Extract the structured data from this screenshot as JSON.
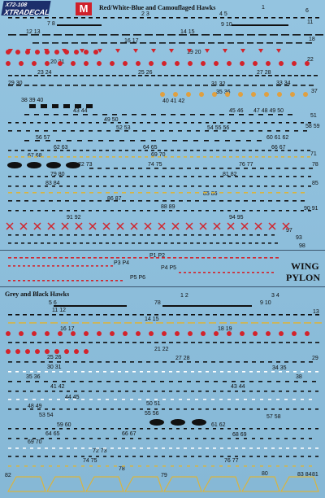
{
  "header": {
    "brand": "XTRADECAL",
    "code": "X72-108",
    "brand_mark": "M",
    "title_top": "Red/White-Blue and Camouflaged Hawks",
    "title_bottom": "Grey and Black Hawks",
    "wing_label": "WING",
    "pylon_label": "PYLON"
  },
  "labels": {
    "n1": "1",
    "n23": "2 3",
    "n45": "4 5",
    "n6": "6",
    "n7": "7 8",
    "n910": "9 10",
    "n11": "11",
    "n12": "12 13",
    "n1415": "14 15",
    "n1617": "16 17",
    "n18": "18",
    "n1920": "19 20",
    "n2021": "20 21",
    "n22": "22",
    "n2324": "23 24",
    "n2526": "25 26",
    "n2728": "27 28",
    "n2930": "29 30",
    "n3132": "31 32",
    "n3334": "33 34",
    "n3536": "35 36",
    "n37": "37",
    "n383940": "38 39 40",
    "n404142": "40 41 42",
    "n4344": "43 44",
    "n4546": "45 46",
    "n474849": "47 48 49 50",
    "n4950": "49 50",
    "n51": "51",
    "n5253": "52 53",
    "n5455": "54 55 56",
    "n5657": "56 57",
    "n58": "58 59",
    "n60": "60 61 62",
    "n6263": "62 63",
    "n6465": "64 65",
    "n6667": "66 67",
    "n6768": "67 68",
    "n6970": "69 70",
    "n71": "71",
    "n7273": "72 73",
    "n7475": "74 75",
    "n7677": "76 77",
    "n78": "78",
    "n7980": "79 80",
    "n8182": "81 82",
    "n8384": "83 84",
    "n85": "85",
    "n8687": "86 87",
    "n8889": "88 89",
    "n8586": "85 86",
    "n9091": "90 91",
    "n9192": "91 92",
    "n9495": "94 95",
    "n93": "93",
    "n97": "97",
    "n98": "98",
    "p1p2": "P1 P2",
    "p3p4": "P3 P4",
    "p4p2b": "P4 P5",
    "p5p6": "P5 P6",
    "g12": "1 2",
    "g34": "3 4",
    "g56": "5 6",
    "g78": "78",
    "g910": "9 10",
    "g1112": "11 12",
    "g13": "13",
    "g1415": "14 15",
    "g1617": "16 17",
    "g1819": "18 19",
    "g2122": "21 22",
    "g2728": "27 28",
    "g29": "29",
    "g2526": "25 26",
    "g3031": "30 31",
    "g3536": "35 36",
    "g3435": "34 35",
    "g38": "38",
    "g4142": "41 42",
    "g4344": "43 44",
    "g4445": "44 45",
    "g4849": "48 49",
    "g5051": "50 51",
    "g5354": "53 54",
    "g5556": "55 56",
    "g5758": "57 58",
    "g5960": "59 60",
    "g6162": "61 62",
    "g6465": "64 65",
    "g6667": "66 67",
    "g6869": "68 69",
    "g6970": "69 70",
    "g7273": "72 73",
    "g7475": "74 75",
    "g7677": "76 77",
    "g79": "79",
    "g80": "80",
    "g81": "81",
    "g82": "82",
    "g83": "83",
    "g8384": "83 84"
  },
  "colors": {
    "background": "#8fc0de",
    "ink": "#111111",
    "red": "#d3232b",
    "yellow": "#d8b440",
    "white": "#ffffff",
    "navy": "#1c2f6b"
  }
}
